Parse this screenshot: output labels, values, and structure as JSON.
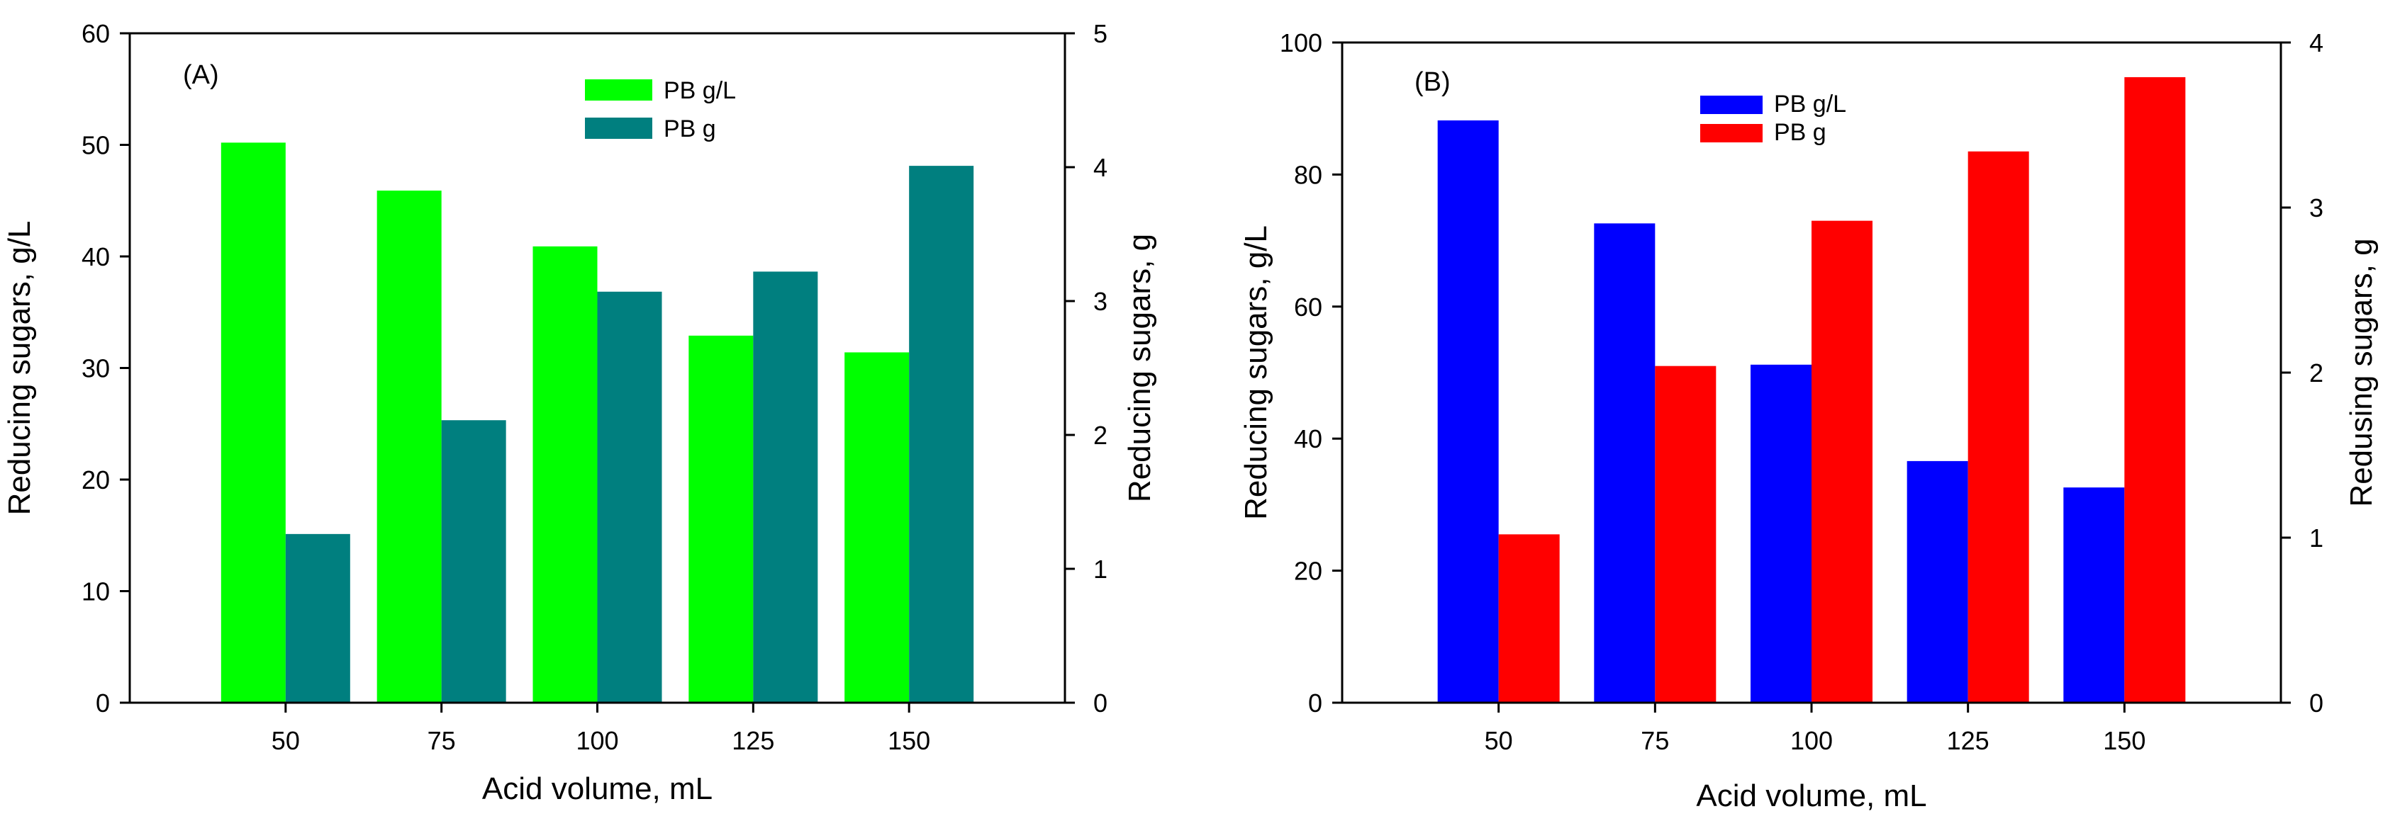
{
  "chart_data": [
    {
      "type": "bar",
      "panel_label": "(A)",
      "categories": [
        "50",
        "75",
        "100",
        "125",
        "150"
      ],
      "xlabel": "Acid volume, mL",
      "ylabel": "Reducing sugars, g/L",
      "y2label": "Reducing sugars, g",
      "ylim": [
        0,
        60
      ],
      "y2lim": [
        0,
        5
      ],
      "yticks": [
        "0",
        "10",
        "20",
        "30",
        "40",
        "50",
        "60"
      ],
      "y2ticks": [
        "0",
        "1",
        "2",
        "3",
        "4",
        "5"
      ],
      "legend_position": "top-center",
      "series": [
        {
          "name": "PB g/L",
          "axis": "left",
          "color": "#00ff00",
          "values": [
            50.2,
            45.9,
            40.9,
            32.9,
            31.4
          ]
        },
        {
          "name": "PB g",
          "axis": "right",
          "color": "#007f7f",
          "values": [
            1.26,
            2.11,
            3.07,
            3.22,
            4.01
          ]
        }
      ]
    },
    {
      "type": "bar",
      "panel_label": "(B)",
      "categories": [
        "50",
        "75",
        "100",
        "125",
        "150"
      ],
      "xlabel": "Acid volume, mL",
      "ylabel": "Reducing sugars, g/L",
      "y2label": "Redusing sugars, g",
      "ylim": [
        0,
        100
      ],
      "y2lim": [
        0,
        4
      ],
      "yticks": [
        "0",
        "20",
        "40",
        "60",
        "80",
        "100"
      ],
      "y2ticks": [
        "0",
        "1",
        "2",
        "3",
        "4"
      ],
      "legend_position": "top-center",
      "series": [
        {
          "name": "PB g/L",
          "axis": "left",
          "color": "#0000ff",
          "values": [
            88.2,
            72.6,
            51.2,
            36.6,
            32.6
          ]
        },
        {
          "name": "PB g",
          "axis": "right",
          "color": "#ff0000",
          "values": [
            1.02,
            2.04,
            2.92,
            3.34,
            3.79
          ]
        }
      ]
    }
  ]
}
